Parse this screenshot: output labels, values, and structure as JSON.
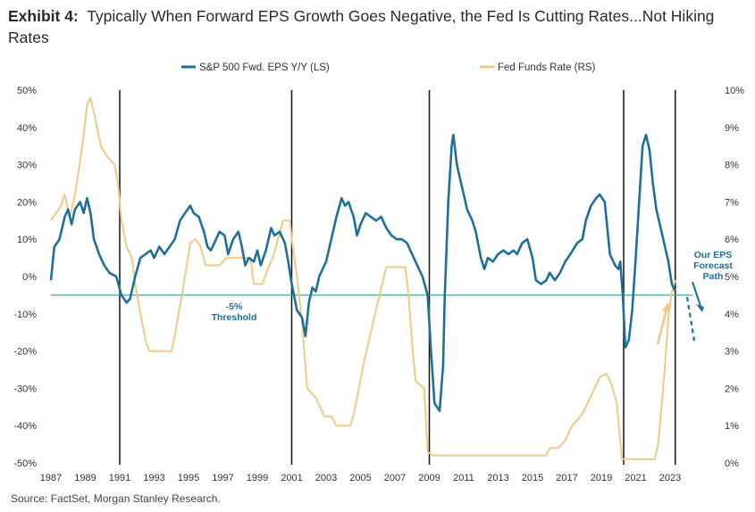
{
  "title": {
    "prefix": "Exhibit 4:",
    "text": "Typically When Forward EPS Growth Goes Negative, the Fed Is Cutting Rates...Not Hiking Rates"
  },
  "source": "Source: FactSet, Morgan Stanley Research.",
  "colors": {
    "eps": "#1f6f99",
    "ffr": "#f0c987",
    "threshold": "#3aa6b9",
    "vline": "#111111"
  },
  "annotations": {
    "threshold_line1": "-5%",
    "threshold_line2": "Threshold",
    "forecast_line1": "Our EPS",
    "forecast_line2": "Forecast",
    "forecast_line3": "Path"
  },
  "chart_data": {
    "type": "line",
    "title": "Typically When Forward EPS Growth Goes Negative, the Fed Is Cutting Rates...Not Hiking Rates",
    "x_tick_labels": [
      "1987",
      "1989",
      "1991",
      "1993",
      "1995",
      "1997",
      "1999",
      "2001",
      "2003",
      "2005",
      "2007",
      "2009",
      "2011",
      "2013",
      "2015",
      "2017",
      "2019",
      "2021",
      "2023"
    ],
    "xlim": [
      1987,
      2024.3
    ],
    "y_left": {
      "ylim": [
        -50,
        50
      ],
      "ticks": [
        50,
        40,
        30,
        20,
        10,
        0,
        -10,
        -20,
        -30,
        -40,
        -50
      ],
      "tick_labels": [
        "50%",
        "40%",
        "30%",
        "20%",
        "10%",
        "0%",
        "-10%",
        "-20%",
        "-30%",
        "-40%",
        "-50%"
      ]
    },
    "y_right": {
      "ylim": [
        0,
        10
      ],
      "ticks": [
        10,
        9,
        8,
        7,
        6,
        5,
        4,
        3,
        2,
        1,
        0
      ],
      "tick_labels": [
        "10%",
        "9%",
        "8%",
        "7%",
        "6%",
        "5%",
        "4%",
        "3%",
        "2%",
        "1%",
        "0%"
      ]
    },
    "legend_placement": "top",
    "vertical_lines": [
      1991.0,
      2001.0,
      2009.0,
      2020.3,
      2023.3
    ],
    "threshold": -5,
    "series": [
      {
        "name": "S&P 500 Fwd. EPS Y/Y (LS)",
        "axis": "left",
        "points": [
          [
            1987.0,
            -1
          ],
          [
            1987.2,
            8
          ],
          [
            1987.5,
            10
          ],
          [
            1987.8,
            16
          ],
          [
            1988.0,
            18
          ],
          [
            1988.2,
            14
          ],
          [
            1988.4,
            18
          ],
          [
            1988.7,
            20
          ],
          [
            1988.9,
            17
          ],
          [
            1989.1,
            21
          ],
          [
            1989.3,
            17
          ],
          [
            1989.5,
            10
          ],
          [
            1989.8,
            6
          ],
          [
            1990.1,
            3
          ],
          [
            1990.4,
            1
          ],
          [
            1990.8,
            0
          ],
          [
            1991.1,
            -5
          ],
          [
            1991.4,
            -7
          ],
          [
            1991.6,
            -6
          ],
          [
            1991.9,
            0
          ],
          [
            1992.2,
            5
          ],
          [
            1992.5,
            6
          ],
          [
            1992.8,
            7
          ],
          [
            1993.0,
            5
          ],
          [
            1993.3,
            8
          ],
          [
            1993.6,
            6
          ],
          [
            1993.9,
            8
          ],
          [
            1994.2,
            10
          ],
          [
            1994.5,
            15
          ],
          [
            1994.8,
            17
          ],
          [
            1995.1,
            19
          ],
          [
            1995.3,
            17
          ],
          [
            1995.6,
            16
          ],
          [
            1995.9,
            12
          ],
          [
            1996.1,
            8
          ],
          [
            1996.3,
            7
          ],
          [
            1996.5,
            9
          ],
          [
            1996.8,
            12
          ],
          [
            1997.1,
            11
          ],
          [
            1997.3,
            6
          ],
          [
            1997.6,
            10
          ],
          [
            1997.9,
            12
          ],
          [
            1998.1,
            8
          ],
          [
            1998.3,
            3
          ],
          [
            1998.5,
            5
          ],
          [
            1998.8,
            4
          ],
          [
            1999.0,
            7
          ],
          [
            1999.2,
            3
          ],
          [
            1999.5,
            7
          ],
          [
            1999.8,
            13
          ],
          [
            2000.0,
            11
          ],
          [
            2000.3,
            12
          ],
          [
            2000.6,
            9
          ],
          [
            2000.8,
            4
          ],
          [
            2001.0,
            -2
          ],
          [
            2001.3,
            -9
          ],
          [
            2001.6,
            -11
          ],
          [
            2001.8,
            -16
          ],
          [
            2002.0,
            -7
          ],
          [
            2002.2,
            -3
          ],
          [
            2002.4,
            -4
          ],
          [
            2002.6,
            0
          ],
          [
            2002.8,
            2
          ],
          [
            2003.0,
            4
          ],
          [
            2003.3,
            10
          ],
          [
            2003.6,
            16
          ],
          [
            2003.9,
            21
          ],
          [
            2004.1,
            19
          ],
          [
            2004.3,
            20
          ],
          [
            2004.6,
            16
          ],
          [
            2004.8,
            11
          ],
          [
            2005.0,
            14
          ],
          [
            2005.3,
            17
          ],
          [
            2005.6,
            16
          ],
          [
            2005.9,
            15
          ],
          [
            2006.2,
            16
          ],
          [
            2006.5,
            13
          ],
          [
            2006.8,
            11
          ],
          [
            2007.1,
            10
          ],
          [
            2007.4,
            10
          ],
          [
            2007.7,
            9
          ],
          [
            2008.0,
            6
          ],
          [
            2008.3,
            3
          ],
          [
            2008.6,
            0
          ],
          [
            2008.9,
            -5
          ],
          [
            2009.1,
            -20
          ],
          [
            2009.3,
            -34
          ],
          [
            2009.6,
            -36
          ],
          [
            2009.8,
            -24
          ],
          [
            2009.9,
            -5
          ],
          [
            2010.1,
            20
          ],
          [
            2010.3,
            35
          ],
          [
            2010.4,
            38
          ],
          [
            2010.6,
            30
          ],
          [
            2010.8,
            26
          ],
          [
            2011.0,
            22
          ],
          [
            2011.2,
            18
          ],
          [
            2011.5,
            15
          ],
          [
            2011.7,
            12
          ],
          [
            2012.0,
            5
          ],
          [
            2012.2,
            2
          ],
          [
            2012.4,
            5
          ],
          [
            2012.7,
            4
          ],
          [
            2013.0,
            6
          ],
          [
            2013.3,
            7
          ],
          [
            2013.6,
            6
          ],
          [
            2013.9,
            7
          ],
          [
            2014.1,
            6
          ],
          [
            2014.4,
            9
          ],
          [
            2014.7,
            10
          ],
          [
            2015.0,
            5
          ],
          [
            2015.2,
            -1
          ],
          [
            2015.5,
            -2
          ],
          [
            2015.8,
            -1
          ],
          [
            2016.0,
            1
          ],
          [
            2016.3,
            -1
          ],
          [
            2016.6,
            1
          ],
          [
            2016.9,
            4
          ],
          [
            2017.2,
            6
          ],
          [
            2017.6,
            9
          ],
          [
            2017.9,
            10
          ],
          [
            2018.1,
            15
          ],
          [
            2018.4,
            19
          ],
          [
            2018.7,
            21
          ],
          [
            2018.9,
            22
          ],
          [
            2019.2,
            20
          ],
          [
            2019.5,
            6
          ],
          [
            2019.8,
            3
          ],
          [
            2020.0,
            2
          ],
          [
            2020.1,
            4
          ],
          [
            2020.25,
            -5
          ],
          [
            2020.4,
            -19
          ],
          [
            2020.6,
            -17
          ],
          [
            2020.8,
            -9
          ],
          [
            2021.0,
            5
          ],
          [
            2021.2,
            20
          ],
          [
            2021.4,
            35
          ],
          [
            2021.6,
            38
          ],
          [
            2021.8,
            34
          ],
          [
            2022.0,
            25
          ],
          [
            2022.2,
            18
          ],
          [
            2022.5,
            12
          ],
          [
            2022.7,
            8
          ],
          [
            2022.9,
            4
          ],
          [
            2023.1,
            -2
          ],
          [
            2023.3,
            -4
          ]
        ]
      },
      {
        "name": "Fed Funds Rate (RS)",
        "axis": "right",
        "points": [
          [
            1987.0,
            6.5
          ],
          [
            1987.3,
            6.7
          ],
          [
            1987.6,
            6.9
          ],
          [
            1987.8,
            7.2
          ],
          [
            1988.1,
            6.6
          ],
          [
            1988.4,
            7.2
          ],
          [
            1988.7,
            8.1
          ],
          [
            1988.9,
            8.8
          ],
          [
            1989.1,
            9.6
          ],
          [
            1989.3,
            9.8
          ],
          [
            1989.6,
            9.2
          ],
          [
            1989.9,
            8.5
          ],
          [
            1990.3,
            8.2
          ],
          [
            1990.7,
            8.0
          ],
          [
            1990.9,
            7.5
          ],
          [
            1991.1,
            6.5
          ],
          [
            1991.4,
            5.8
          ],
          [
            1991.7,
            5.5
          ],
          [
            1991.9,
            4.8
          ],
          [
            1992.2,
            4.0
          ],
          [
            1992.5,
            3.3
          ],
          [
            1992.7,
            3.0
          ],
          [
            1993.0,
            3.0
          ],
          [
            1993.5,
            3.0
          ],
          [
            1994.0,
            3.0
          ],
          [
            1994.2,
            3.4
          ],
          [
            1994.5,
            4.2
          ],
          [
            1994.8,
            5.0
          ],
          [
            1995.1,
            5.9
          ],
          [
            1995.4,
            6.0
          ],
          [
            1995.7,
            5.8
          ],
          [
            1996.0,
            5.3
          ],
          [
            1996.3,
            5.3
          ],
          [
            1996.8,
            5.3
          ],
          [
            1997.2,
            5.5
          ],
          [
            1997.7,
            5.5
          ],
          [
            1998.3,
            5.5
          ],
          [
            1998.6,
            5.5
          ],
          [
            1998.8,
            4.8
          ],
          [
            1999.3,
            4.8
          ],
          [
            1999.6,
            5.2
          ],
          [
            1999.9,
            5.5
          ],
          [
            2000.2,
            6.0
          ],
          [
            2000.5,
            6.5
          ],
          [
            2000.9,
            6.5
          ],
          [
            2001.0,
            6.0
          ],
          [
            2001.3,
            5.0
          ],
          [
            2001.6,
            3.8
          ],
          [
            2001.9,
            2.0
          ],
          [
            2002.4,
            1.75
          ],
          [
            2002.9,
            1.25
          ],
          [
            2003.3,
            1.25
          ],
          [
            2003.6,
            1.0
          ],
          [
            2004.4,
            1.0
          ],
          [
            2004.6,
            1.3
          ],
          [
            2004.9,
            2.0
          ],
          [
            2005.2,
            2.7
          ],
          [
            2005.6,
            3.5
          ],
          [
            2006.0,
            4.3
          ],
          [
            2006.5,
            5.25
          ],
          [
            2007.0,
            5.25
          ],
          [
            2007.6,
            5.25
          ],
          [
            2007.8,
            4.5
          ],
          [
            2008.0,
            3.2
          ],
          [
            2008.2,
            2.2
          ],
          [
            2008.7,
            2.0
          ],
          [
            2008.9,
            0.3
          ],
          [
            2009.2,
            0.2
          ],
          [
            2012.0,
            0.2
          ],
          [
            2015.8,
            0.2
          ],
          [
            2016.0,
            0.4
          ],
          [
            2016.5,
            0.4
          ],
          [
            2016.9,
            0.6
          ],
          [
            2017.3,
            1.0
          ],
          [
            2017.7,
            1.2
          ],
          [
            2018.0,
            1.4
          ],
          [
            2018.5,
            1.9
          ],
          [
            2018.9,
            2.3
          ],
          [
            2019.3,
            2.4
          ],
          [
            2019.6,
            2.1
          ],
          [
            2019.9,
            1.6
          ],
          [
            2020.2,
            0.1
          ],
          [
            2021.5,
            0.1
          ],
          [
            2022.1,
            0.1
          ],
          [
            2022.3,
            0.5
          ],
          [
            2022.5,
            1.5
          ],
          [
            2022.7,
            2.6
          ],
          [
            2022.9,
            3.9
          ],
          [
            2023.1,
            4.6
          ],
          [
            2023.3,
            4.9
          ]
        ]
      }
    ]
  }
}
